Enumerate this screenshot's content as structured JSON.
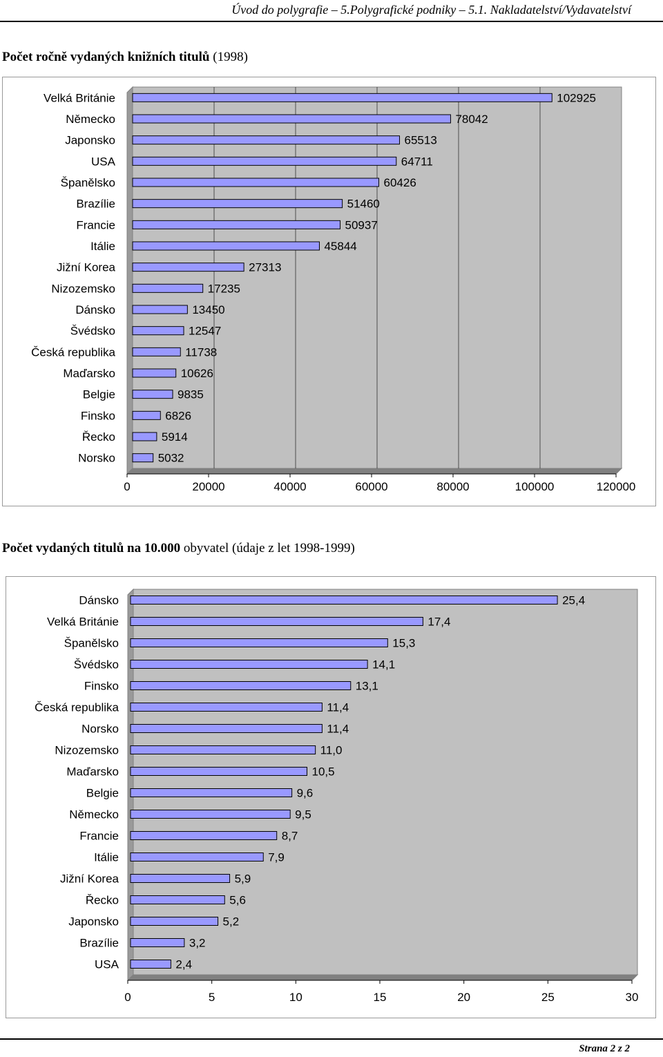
{
  "header": {
    "text": "Úvod do polygrafie – 5.Polygrafické podniky – 5.1. Nakladatelství/Vydavatelství"
  },
  "chart1": {
    "title_bold": "Počet ročně vydaných knižních titulů",
    "title_rest": " (1998)"
  },
  "chart2": {
    "title_bold": "Počet vydaných titulů na 10.000",
    "title_rest": " obyvatel (údaje z let 1998-1999)"
  },
  "footer": {
    "page": "Strana 2 z 2"
  },
  "colors": {
    "bar_fill": "#9999ff",
    "plot_background": "#c0c0c0",
    "gridline": "#000000"
  },
  "chart_data": [
    {
      "type": "bar",
      "orientation": "horizontal",
      "categories": [
        "Velká Británie",
        "Německo",
        "Japonsko",
        "USA",
        "Španělsko",
        "Brazílie",
        "Francie",
        "Itálie",
        "Jižní Korea",
        "Nizozemsko",
        "Dánsko",
        "Švédsko",
        "Česká republika",
        "Maďarsko",
        "Belgie",
        "Finsko",
        "Řecko",
        "Norsko"
      ],
      "values": [
        102925,
        78042,
        65513,
        64711,
        60426,
        51460,
        50937,
        45844,
        27313,
        17235,
        13450,
        12547,
        11738,
        10626,
        9835,
        6826,
        5914,
        5032
      ],
      "value_labels": [
        "102925",
        "78042",
        "65513",
        "64711",
        "60426",
        "51460",
        "50937",
        "45844",
        "27313",
        "17235",
        "13450",
        "12547",
        "11738",
        "10626",
        "9835",
        "6826",
        "5914",
        "5032"
      ],
      "xticks": [
        "0",
        "20000",
        "40000",
        "60000",
        "80000",
        "100000",
        "120000"
      ],
      "xlim": [
        0,
        120000
      ],
      "grid": "vertical",
      "legend": "none"
    },
    {
      "type": "bar",
      "orientation": "horizontal",
      "categories": [
        "Dánsko",
        "Velká Británie",
        "Španělsko",
        "Švédsko",
        "Finsko",
        "Česká republika",
        "Norsko",
        "Nizozemsko",
        "Maďarsko",
        "Belgie",
        "Německo",
        "Francie",
        "Itálie",
        "Jižní Korea",
        "Řecko",
        "Japonsko",
        "Brazílie",
        "USA"
      ],
      "values": [
        25.4,
        17.4,
        15.3,
        14.1,
        13.1,
        11.4,
        11.4,
        11.0,
        10.5,
        9.6,
        9.5,
        8.7,
        7.9,
        5.9,
        5.6,
        5.2,
        3.2,
        2.4
      ],
      "value_labels": [
        "25,4",
        "17,4",
        "15,3",
        "14,1",
        "13,1",
        "11,4",
        "11,4",
        "11,0",
        "10,5",
        "9,6",
        "9,5",
        "8,7",
        "7,9",
        "5,9",
        "5,6",
        "5,2",
        "3,2",
        "2,4"
      ],
      "xticks": [
        "0",
        "5",
        "10",
        "15",
        "20",
        "25",
        "30"
      ],
      "xlim": [
        0,
        30
      ],
      "grid": "none",
      "legend": "none"
    }
  ]
}
